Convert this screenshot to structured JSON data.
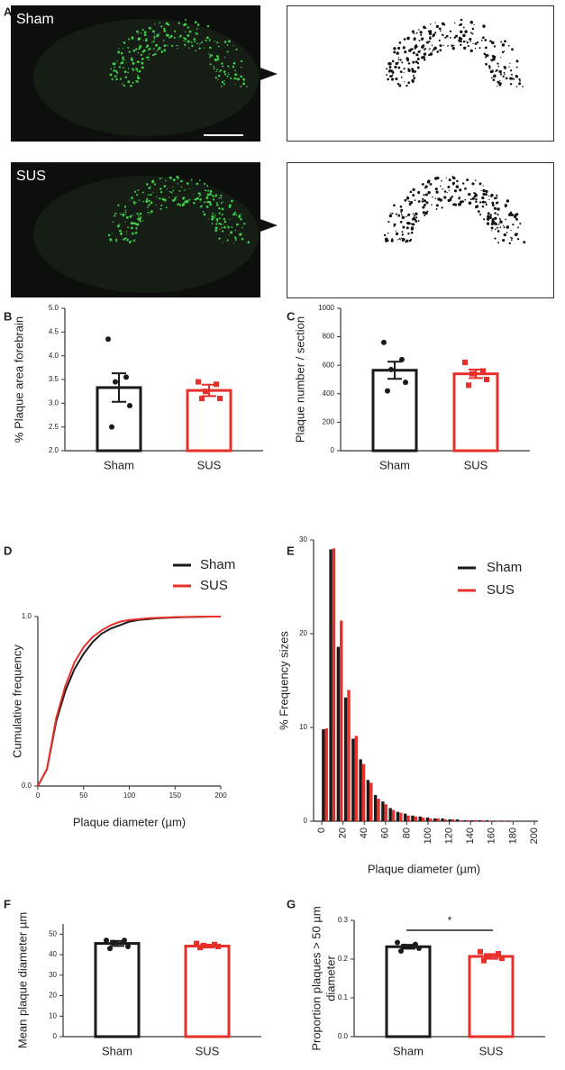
{
  "panel_a": {
    "panel": "A",
    "labels": [
      "Sham",
      "SUS"
    ]
  },
  "chart_data": [
    {
      "type": "bar",
      "panel": "B",
      "ylabel": "% Plaque area forebrain",
      "categories": [
        "Sham",
        "SUS"
      ],
      "values": [
        3.33,
        3.27
      ],
      "errors": [
        0.3,
        0.12
      ],
      "points": [
        [
          4.35,
          3.55,
          3.45,
          2.95,
          2.5
        ],
        [
          3.45,
          3.4,
          3.25,
          3.1,
          3.1
        ]
      ],
      "markers": [
        "circle",
        "square"
      ],
      "colors": [
        "#1a1a1a",
        "#e8302a"
      ],
      "ylim": [
        2.0,
        5.0
      ],
      "yticks": [
        {
          "value": 2,
          "label": "2.0"
        },
        2.5,
        {
          "value": 3,
          "label": "3.0"
        },
        3.5,
        {
          "value": 4,
          "label": "4.0"
        },
        4.5,
        {
          "value": 5,
          "label": "5.0"
        }
      ]
    },
    {
      "type": "bar",
      "panel": "C",
      "ylabel": "Plaque number / section",
      "categories": [
        "Sham",
        "SUS"
      ],
      "values": [
        565,
        540
      ],
      "errors": [
        60,
        30
      ],
      "points": [
        [
          760,
          640,
          570,
          480,
          420
        ],
        [
          620,
          560,
          540,
          500,
          460
        ]
      ],
      "markers": [
        "circle",
        "square"
      ],
      "colors": [
        "#1a1a1a",
        "#e8302a"
      ],
      "ylim": [
        0,
        1000
      ],
      "yticks": [
        0,
        200,
        400,
        600,
        800,
        1000
      ]
    },
    {
      "type": "line",
      "panel": "D",
      "xlabel": "Plaque diameter (µm)",
      "ylabel": "Cumulative frequency",
      "x": [
        0,
        10,
        20,
        30,
        40,
        50,
        60,
        70,
        80,
        90,
        100,
        110,
        120,
        130,
        140,
        150,
        160,
        170,
        180,
        190,
        200
      ],
      "series": [
        {
          "name": "Sham",
          "color": "#1a1a1a",
          "values": [
            0,
            0.1,
            0.38,
            0.56,
            0.69,
            0.78,
            0.85,
            0.9,
            0.93,
            0.95,
            0.97,
            0.98,
            0.985,
            0.99,
            0.993,
            0.995,
            0.997,
            0.998,
            0.999,
            1,
            1
          ]
        },
        {
          "name": "SUS",
          "color": "#e8302a",
          "values": [
            0,
            0.1,
            0.4,
            0.59,
            0.73,
            0.82,
            0.88,
            0.92,
            0.95,
            0.97,
            0.98,
            0.985,
            0.99,
            0.993,
            0.995,
            0.997,
            0.998,
            0.999,
            1,
            1,
            1
          ]
        }
      ],
      "xlim": [
        0,
        200
      ],
      "xticks": [
        0,
        50,
        100,
        150,
        200
      ],
      "ylim": [
        0,
        1
      ],
      "yticks": [
        {
          "value": 0,
          "label": "0.0"
        },
        {
          "value": 1,
          "label": "1.0"
        }
      ]
    },
    {
      "type": "grouped_bar",
      "panel": "E",
      "xlabel": "Plaque diameter (µm)",
      "ylabel": "% Frequency sizes",
      "x": [
        3,
        10,
        17,
        24,
        31,
        38,
        45,
        52,
        59,
        66,
        73,
        80,
        87,
        94,
        101,
        108,
        115,
        122,
        129,
        136,
        143,
        150,
        157,
        164,
        171,
        178
      ],
      "series": [
        {
          "name": "Sham",
          "color": "#1a1a1a",
          "values": [
            9.8,
            29,
            18.6,
            13.2,
            8.8,
            6.6,
            4.4,
            2.8,
            2.1,
            1.4,
            1.0,
            0.8,
            0.6,
            0.5,
            0.4,
            0.3,
            0.3,
            0.2,
            0.2,
            0.1,
            0.1,
            0.1,
            0.1,
            0.05,
            0.05,
            0.05
          ]
        },
        {
          "name": "SUS",
          "color": "#e8302a",
          "values": [
            9.9,
            29.1,
            21.4,
            14,
            9.1,
            6.1,
            4.1,
            2.4,
            1.8,
            1.2,
            0.9,
            0.6,
            0.5,
            0.4,
            0.3,
            0.3,
            0.2,
            0.2,
            0.1,
            0.1,
            0.1,
            0.1,
            0.05,
            0.05,
            0.05,
            0.05
          ]
        }
      ],
      "xlim": [
        0,
        200
      ],
      "xticks": [
        0,
        20,
        40,
        60,
        80,
        100,
        120,
        140,
        160,
        180,
        200
      ],
      "ylim": [
        0,
        30
      ],
      "yticks": [
        0,
        10,
        20,
        30
      ]
    },
    {
      "type": "bar",
      "panel": "F",
      "ylabel": "Mean plaque diameter µm",
      "categories": [
        "Sham",
        "SUS"
      ],
      "values": [
        45.5,
        44.2
      ],
      "errors": [
        1.2,
        0.7
      ],
      "points": [
        [
          47,
          47,
          46,
          44,
          43
        ],
        [
          45.5,
          45,
          44.5,
          44,
          43.5
        ]
      ],
      "markers": [
        "circle",
        "square"
      ],
      "colors": [
        "#1a1a1a",
        "#e8302a"
      ],
      "ylim": [
        0,
        55
      ],
      "yticks": [
        0,
        10,
        20,
        30,
        40,
        50
      ]
    },
    {
      "type": "bar",
      "panel": "G",
      "ylabel": [
        "Proportion plaques > 50 µm",
        "diameter"
      ],
      "categories": [
        "Sham",
        "SUS"
      ],
      "values": [
        0.232,
        0.207
      ],
      "errors": [
        0.005,
        0.006
      ],
      "points": [
        [
          0.243,
          0.238,
          0.233,
          0.228,
          0.221
        ],
        [
          0.219,
          0.214,
          0.208,
          0.202,
          0.196
        ]
      ],
      "markers": [
        "circle",
        "square"
      ],
      "colors": [
        "#1a1a1a",
        "#e8302a"
      ],
      "annotation": "*",
      "ylim": [
        0,
        0.3
      ],
      "yticks": [
        {
          "value": 0,
          "label": "0.0"
        },
        0.1,
        0.2,
        0.3
      ]
    }
  ]
}
